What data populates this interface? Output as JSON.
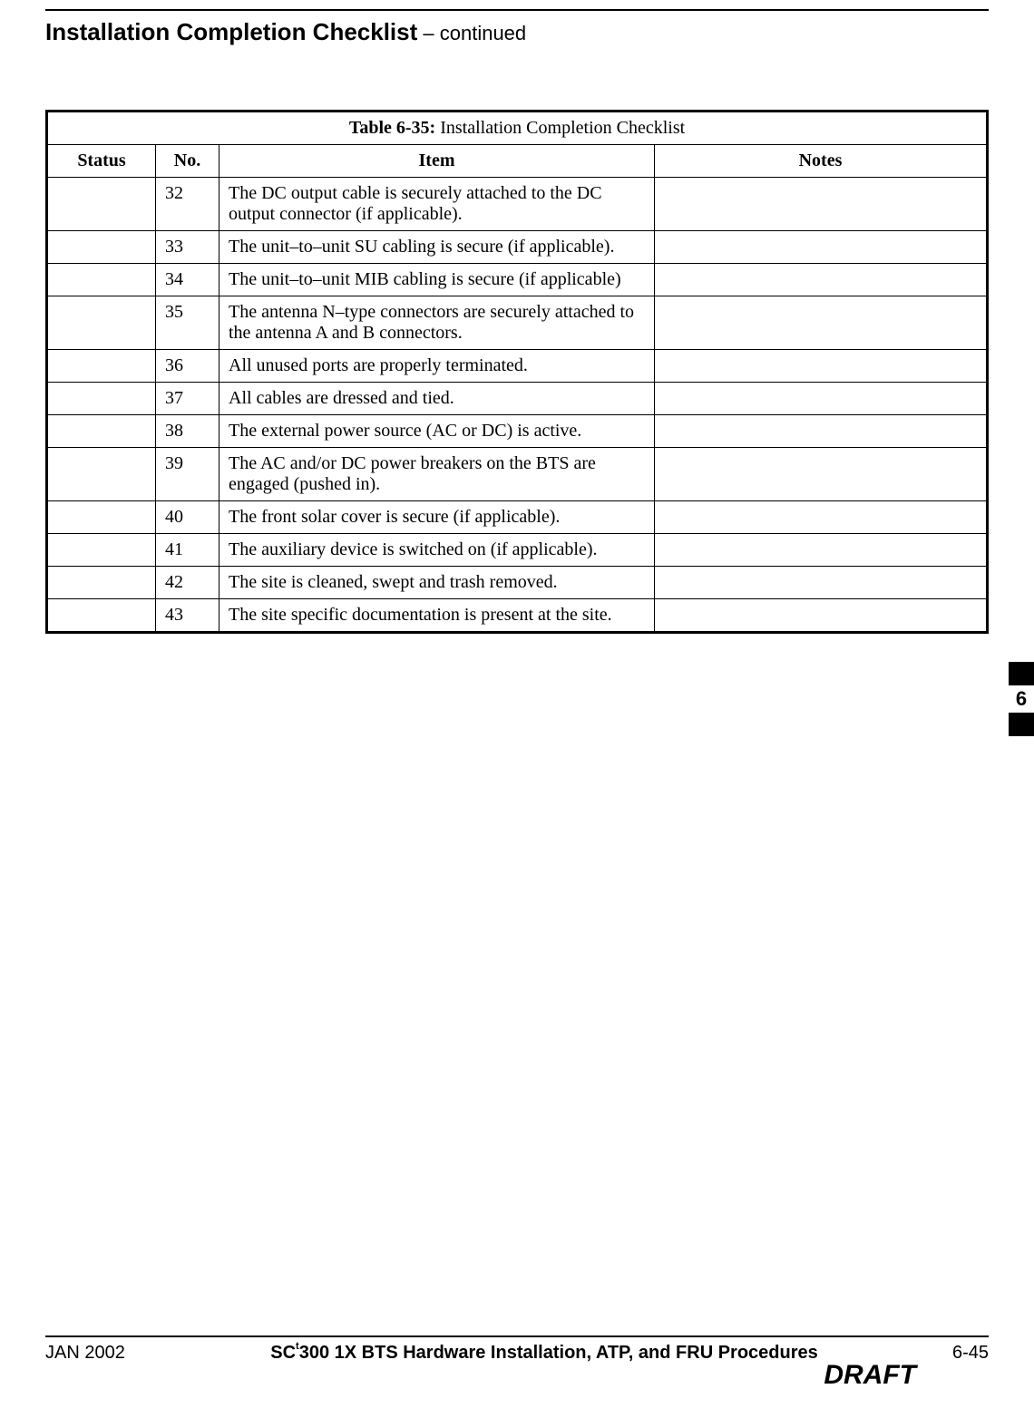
{
  "header": {
    "title": "Installation Completion Checklist",
    "continued": " – continued"
  },
  "table": {
    "caption_label": "Table 6-35:",
    "caption_text": " Installation Completion Checklist",
    "columns": {
      "status": "Status",
      "no": "No.",
      "item": "Item",
      "notes": "Notes"
    },
    "rows": [
      {
        "no": "32",
        "item": "The DC output cable is securely attached to the DC output connector (if applicable)."
      },
      {
        "no": "33",
        "item": "The unit–to–unit SU cabling is secure (if applicable)."
      },
      {
        "no": "34",
        "item": "The unit–to–unit MIB cabling is secure (if applicable)"
      },
      {
        "no": "35",
        "item": "The antenna N–type connectors are securely attached to the antenna A and B connectors."
      },
      {
        "no": "36",
        "item": "All unused ports are properly terminated."
      },
      {
        "no": "37",
        "item": "All cables are dressed and tied."
      },
      {
        "no": "38",
        "item": "The external power source (AC or DC) is active."
      },
      {
        "no": "39",
        "item": "The AC and/or DC power breakers on the BTS are engaged (pushed in)."
      },
      {
        "no": "40",
        "item": "The front solar cover is secure (if applicable)."
      },
      {
        "no": "41",
        "item": "The auxiliary device is switched on (if applicable)."
      },
      {
        "no": "42",
        "item": "The site is cleaned, swept and trash removed."
      },
      {
        "no": "43",
        "item": "The site specific documentation is present at the site."
      }
    ]
  },
  "side_tab": {
    "number": "6"
  },
  "footer": {
    "date": "JAN 2002",
    "doc_title_prefix": "SC",
    "doc_title_tm": "t",
    "doc_title_rest": "300 1X BTS Hardware Installation, ATP, and FRU Procedures",
    "page_number": "6-45",
    "draft": "DRAFT"
  }
}
